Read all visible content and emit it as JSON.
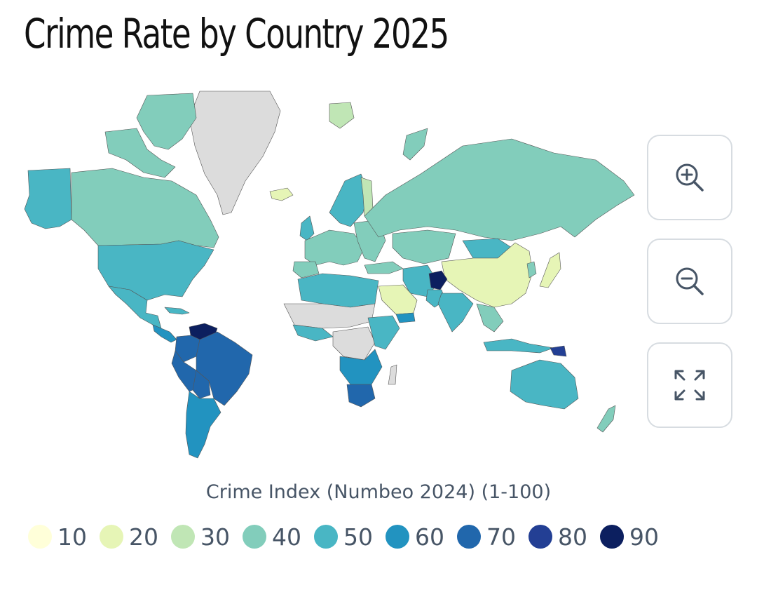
{
  "title": "Crime Rate by Country 2025",
  "legend": {
    "title": "Crime Index (Numbeo 2024) (1-100)",
    "items": [
      {
        "label": "10",
        "color": "#ffffd9"
      },
      {
        "label": "20",
        "color": "#e6f5b6"
      },
      {
        "label": "30",
        "color": "#c0e6b5"
      },
      {
        "label": "40",
        "color": "#82cdbb"
      },
      {
        "label": "50",
        "color": "#49b6c4"
      },
      {
        "label": "60",
        "color": "#2293c0"
      },
      {
        "label": "70",
        "color": "#2167ac"
      },
      {
        "label": "80",
        "color": "#233f94"
      },
      {
        "label": "90",
        "color": "#0c1f5f"
      }
    ]
  },
  "controls": {
    "zoom_in_icon": "zoom-in-icon",
    "zoom_out_icon": "zoom-out-icon",
    "fullscreen_icon": "fullscreen-icon"
  },
  "no_data_color": "#dcdcdc"
}
